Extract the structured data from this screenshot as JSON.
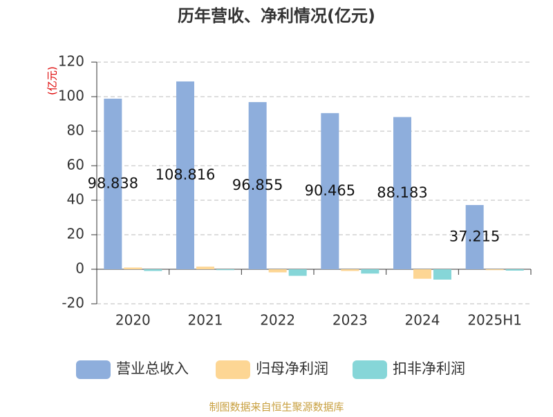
{
  "chart_data": {
    "type": "bar",
    "title": "历年营收、净利情况(亿元)",
    "y_label": "(亿元)",
    "categories": [
      "2020",
      "2021",
      "2022",
      "2023",
      "2024",
      "2025H1"
    ],
    "series": [
      {
        "name": "营业总收入",
        "color": "#8eaedc",
        "values": [
          98.838,
          108.816,
          96.855,
          90.465,
          88.183,
          37.215
        ]
      },
      {
        "name": "归母净利润",
        "color": "#fdd694",
        "values": [
          1.0,
          1.5,
          -1.8,
          -1.0,
          -5.5,
          -0.5
        ]
      },
      {
        "name": "扣非净利润",
        "color": "#86d6d8",
        "values": [
          -1.0,
          -0.5,
          -3.8,
          -2.5,
          -6.0,
          -0.8
        ]
      }
    ],
    "ylim": [
      -20,
      120
    ],
    "yticks": [
      -20,
      0,
      20,
      40,
      60,
      80,
      100,
      120
    ],
    "grid": true,
    "source": "制图数据来自恒生聚源数据库"
  }
}
